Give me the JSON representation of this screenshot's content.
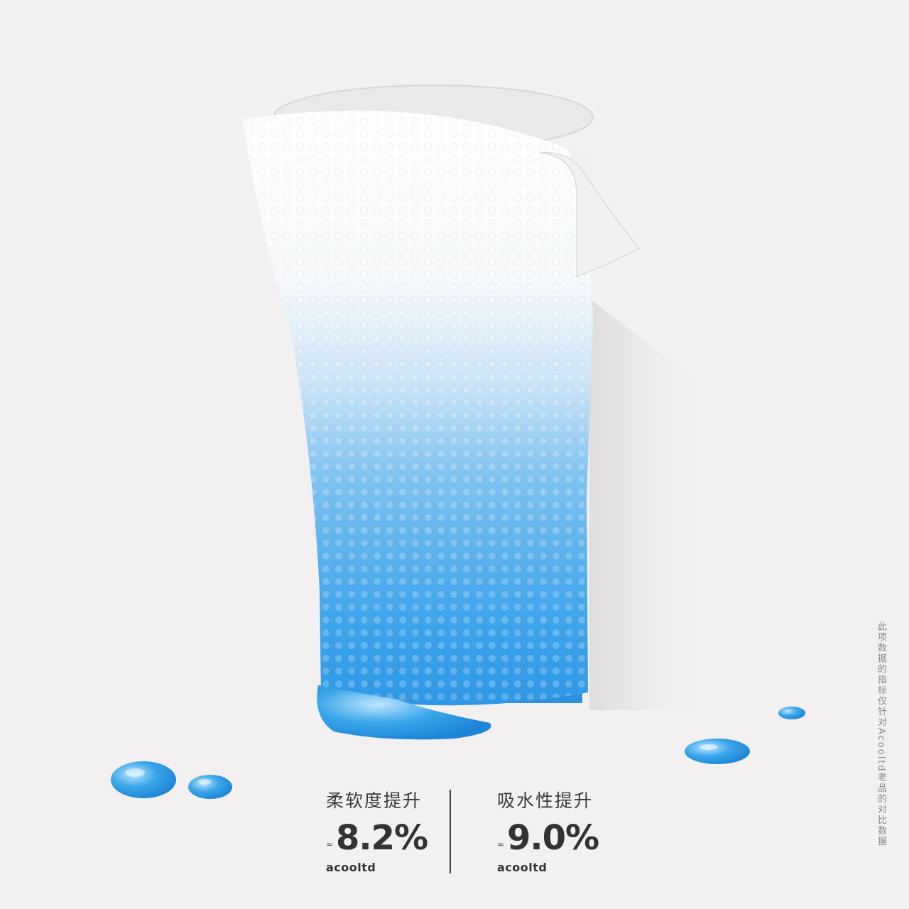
{
  "stats": [
    {
      "label": "柔软度提升",
      "approx": "≈",
      "value": "8.2%",
      "brand": "acooltd"
    },
    {
      "label": "吸水性提升",
      "approx": "≈",
      "value": "9.0%",
      "brand": "acooltd"
    }
  ],
  "disclaimer": "此项数据的指标仅针对Acooltd老品的对比数据",
  "colors": {
    "background": "#f2f0f0",
    "water": "#3aa6ea",
    "towel": "#ffffff",
    "text": "#333333"
  }
}
